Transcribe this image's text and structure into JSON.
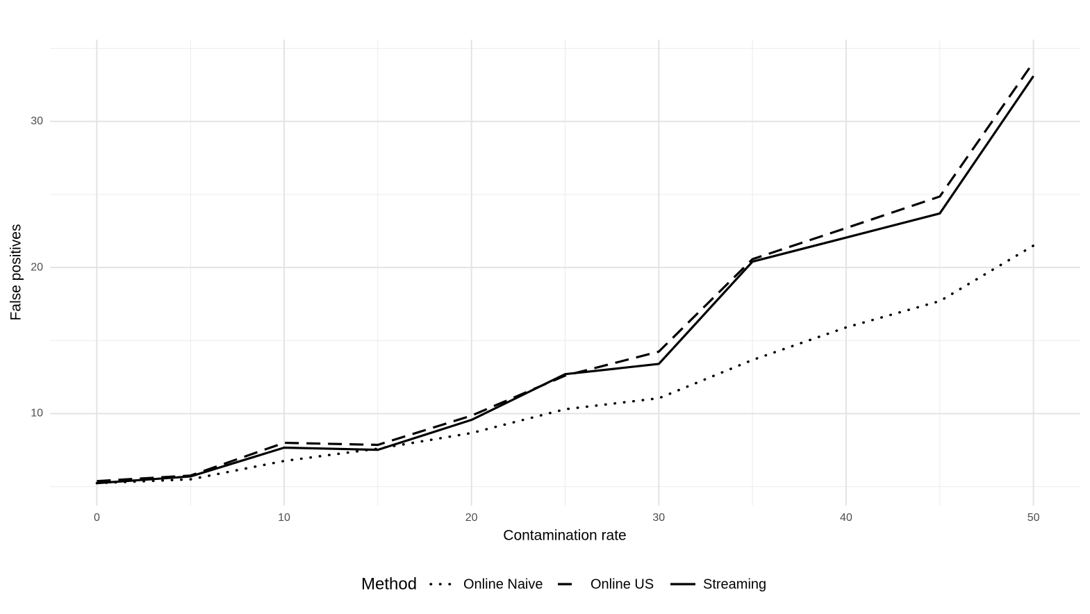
{
  "chart_data": {
    "type": "line",
    "x_label": "Contamination rate",
    "y_label": "False positives",
    "legend_title": "Method",
    "legend_position": "bottom",
    "grid": true,
    "xlim": [
      -2.5,
      52.5
    ],
    "xticks": [
      0,
      10,
      20,
      30,
      40,
      50
    ],
    "minor_xticks": [
      5,
      15,
      25,
      35,
      45
    ],
    "ylim": [
      3.7,
      35.6
    ],
    "yticks": [
      10,
      20,
      30
    ],
    "minor_yticks": [
      5,
      15,
      25,
      35
    ],
    "x": [
      0,
      5,
      10,
      15,
      20,
      25,
      30,
      35,
      40,
      45,
      50
    ],
    "series": [
      {
        "name": "Online Naive",
        "color": "#000000",
        "linestyle": "dotted",
        "values": [
          5.24,
          5.5,
          6.76,
          7.6,
          8.67,
          10.3,
          11.05,
          13.67,
          15.9,
          17.7,
          21.5
        ]
      },
      {
        "name": "Online US",
        "color": "#000000",
        "linestyle": "dashed",
        "values": [
          5.38,
          5.76,
          8.0,
          7.86,
          9.86,
          12.6,
          14.24,
          20.57,
          22.7,
          24.86,
          34.05
        ]
      },
      {
        "name": "Streaming",
        "color": "#000000",
        "linestyle": "solid",
        "values": [
          5.24,
          5.7,
          7.67,
          7.52,
          9.57,
          12.7,
          13.4,
          20.4,
          22.05,
          23.7,
          33.1
        ]
      }
    ]
  }
}
